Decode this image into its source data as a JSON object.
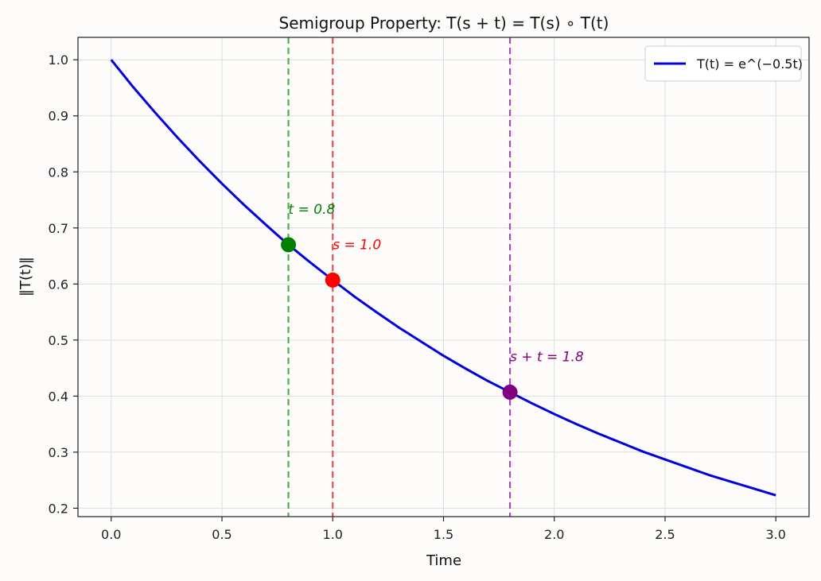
{
  "chart_data": {
    "type": "line",
    "title": "Semigroup Property: T(s + t) = T(s) ∘ T(t)",
    "xlabel": "Time",
    "ylabel": "‖T(t)‖",
    "xlim": [
      -0.15,
      3.15
    ],
    "ylim": [
      0.185,
      1.04
    ],
    "xticks": [
      0.0,
      0.5,
      1.0,
      1.5,
      2.0,
      2.5,
      3.0
    ],
    "xtick_labels": [
      "0.0",
      "0.5",
      "1.0",
      "1.5",
      "2.0",
      "2.5",
      "3.0"
    ],
    "yticks": [
      0.2,
      0.3,
      0.4,
      0.5,
      0.6,
      0.7,
      0.8,
      0.9,
      1.0
    ],
    "ytick_labels": [
      "0.2",
      "0.3",
      "0.4",
      "0.5",
      "0.6",
      "0.7",
      "0.8",
      "0.9",
      "1.0"
    ],
    "grid": true,
    "legend_position": "top-right",
    "series": [
      {
        "name": "T(t) = e^(−0.5t)",
        "color": "#0000e0",
        "x": [
          0,
          0.1,
          0.2,
          0.3,
          0.4,
          0.5,
          0.6,
          0.7,
          0.8,
          0.9,
          1.0,
          1.1,
          1.2,
          1.3,
          1.4,
          1.5,
          1.6,
          1.7,
          1.8,
          1.9,
          2.0,
          2.1,
          2.2,
          2.3,
          2.4,
          2.5,
          2.6,
          2.7,
          2.8,
          2.9,
          3.0
        ],
        "y": [
          1.0,
          0.951,
          0.905,
          0.861,
          0.819,
          0.779,
          0.741,
          0.705,
          0.67,
          0.638,
          0.607,
          0.577,
          0.549,
          0.522,
          0.497,
          0.472,
          0.449,
          0.427,
          0.407,
          0.387,
          0.368,
          0.35,
          0.333,
          0.317,
          0.301,
          0.287,
          0.273,
          0.259,
          0.247,
          0.235,
          0.223
        ]
      }
    ],
    "markers": [
      {
        "label": "t = 0.8",
        "x": 0.8,
        "y": 0.67,
        "color": "#008000"
      },
      {
        "label": "s = 1.0",
        "x": 1.0,
        "y": 0.607,
        "color": "#ff0000"
      },
      {
        "label": "s + t = 1.8",
        "x": 1.8,
        "y": 0.407,
        "color": "#800080"
      }
    ],
    "vlines": [
      {
        "x": 0.8,
        "color": "#4caf50"
      },
      {
        "x": 1.0,
        "color": "#e05555"
      },
      {
        "x": 1.8,
        "color": "#a050b0"
      }
    ]
  }
}
